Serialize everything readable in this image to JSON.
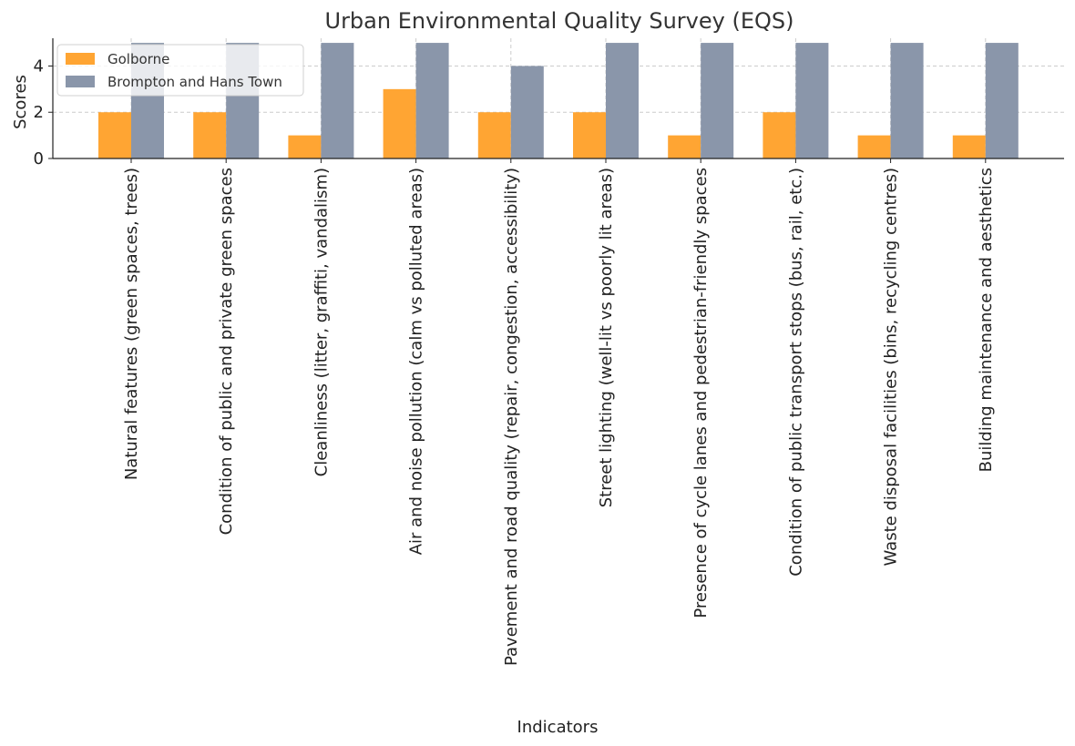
{
  "chart_data": {
    "type": "bar",
    "title": "Urban Environmental Quality Survey (EQS)",
    "xlabel": "Indicators",
    "ylabel": "Scores",
    "ylim": [
      0,
      5.2
    ],
    "yticks": [
      0,
      2,
      4
    ],
    "ytick_labels": [
      "0",
      "2",
      "4"
    ],
    "grid": true,
    "legend_position": "top-left",
    "categories": [
      "Natural features (green spaces, trees)",
      "Condition of public and private green spaces",
      "Cleanliness (litter, graffiti, vandalism)",
      "Air and noise pollution (calm vs polluted areas)",
      "Pavement and road quality (repair, congestion, accessibility)",
      "Street lighting (well-lit vs poorly lit areas)",
      "Presence of cycle lanes and pedestrian-friendly spaces",
      "Condition of public transport stops (bus, rail, etc.)",
      "Waste disposal facilities (bins, recycling centres)",
      "Building maintenance and aesthetics"
    ],
    "series": [
      {
        "name": "Golborne",
        "color": "#ffa533",
        "values": [
          2,
          2,
          1,
          3,
          2,
          2,
          1,
          2,
          1,
          1
        ]
      },
      {
        "name": "Brompton and Hans Town",
        "color": "#8a96aa",
        "values": [
          5,
          5,
          5,
          5,
          4,
          5,
          5,
          5,
          5,
          5
        ]
      }
    ]
  }
}
